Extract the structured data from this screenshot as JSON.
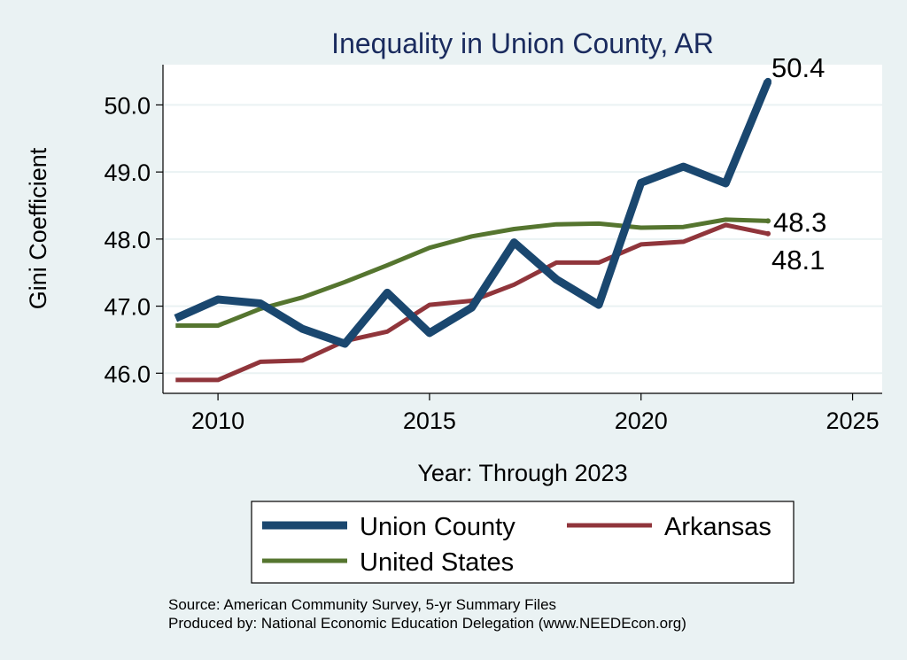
{
  "chart_data": {
    "type": "line",
    "title": "Inequality in Union County, AR",
    "xlabel": "Year: Through 2023",
    "ylabel": "Gini Coefficient",
    "xlim": [
      2008.7,
      2025.7
    ],
    "ylim": [
      45.7,
      50.6
    ],
    "x_ticks": [
      2010,
      2015,
      2020,
      2025
    ],
    "x_tick_labels": [
      "2010",
      "2015",
      "2020",
      "2025"
    ],
    "y_ticks": [
      46.0,
      47.0,
      48.0,
      49.0,
      50.0
    ],
    "y_tick_labels": [
      "46.0",
      "47.0",
      "48.0",
      "49.0",
      "50.0"
    ],
    "grid": "horizontal",
    "legend_position": "bottom",
    "x": [
      2009,
      2010,
      2011,
      2012,
      2013,
      2014,
      2015,
      2016,
      2017,
      2018,
      2019,
      2020,
      2021,
      2022,
      2023
    ],
    "series": [
      {
        "name": "Union County",
        "color": "#1a476f",
        "values": [
          46.82,
          47.1,
          47.04,
          46.66,
          46.44,
          47.2,
          46.6,
          46.98,
          47.95,
          47.4,
          47.02,
          48.84,
          49.08,
          48.83,
          50.35
        ],
        "end_label": "50.4"
      },
      {
        "name": "Arkansas",
        "color": "#90353b",
        "values": [
          45.9,
          45.9,
          46.17,
          46.19,
          46.48,
          46.62,
          47.02,
          47.08,
          47.32,
          47.65,
          47.65,
          47.92,
          47.96,
          48.21,
          48.08
        ],
        "end_label": "48.1"
      },
      {
        "name": "United States",
        "color": "#55752f",
        "values": [
          46.71,
          46.71,
          46.96,
          47.13,
          47.36,
          47.61,
          47.87,
          48.04,
          48.15,
          48.22,
          48.23,
          48.17,
          48.18,
          48.29,
          48.27
        ],
        "end_label": "48.3"
      }
    ],
    "notes": [
      "Source: American Community Survey, 5-yr Summary Files",
      "Produced by: National Economic Education Delegation (www.NEEDEcon.org)"
    ]
  }
}
